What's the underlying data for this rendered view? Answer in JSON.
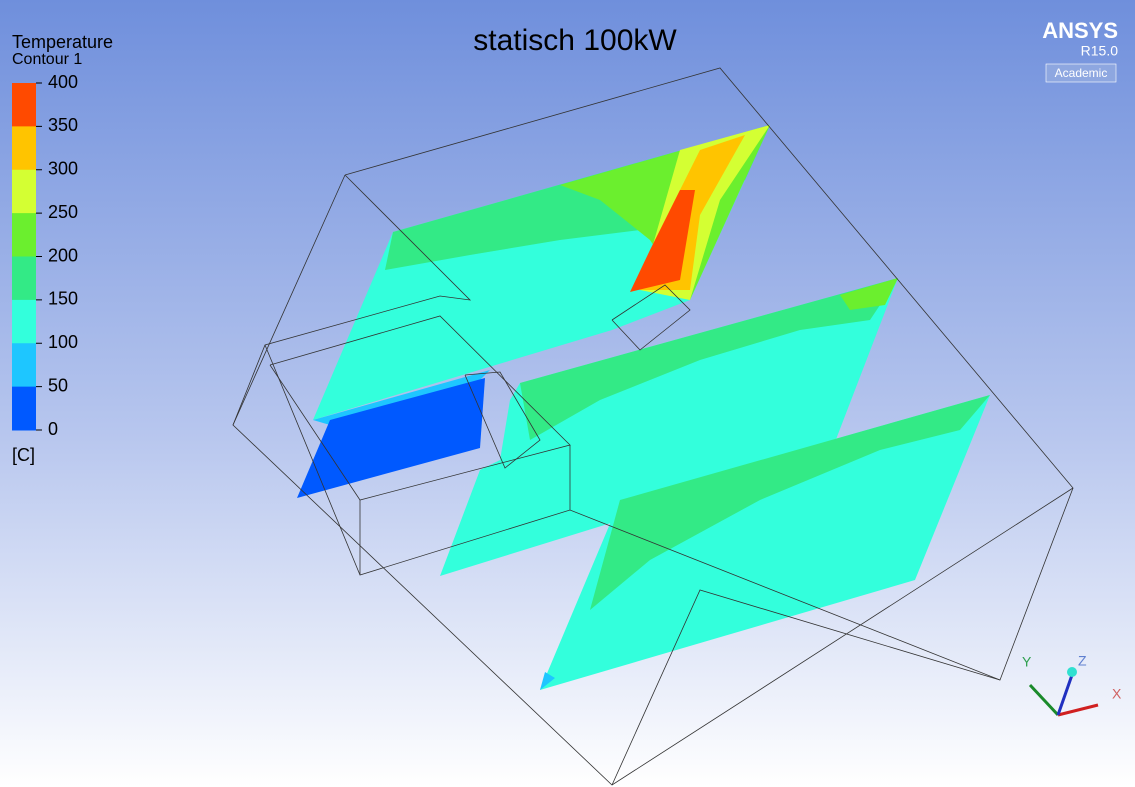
{
  "title": "statisch 100kW",
  "legend": {
    "title": "Temperature",
    "subtitle": "Contour 1",
    "unit": "[C]",
    "ticks": [
      400,
      350,
      300,
      250,
      200,
      150,
      100,
      50,
      0
    ],
    "colors": [
      "#ff4a00",
      "#ffc400",
      "#d4ff33",
      "#6bef2e",
      "#33ea86",
      "#33ffdc",
      "#1ec6ff",
      "#0059ff"
    ]
  },
  "logo": {
    "brand": "ANSYS",
    "version": "R15.0",
    "edition": "Academic"
  },
  "triad": {
    "x": "X",
    "y": "Y",
    "z": "Z"
  }
}
